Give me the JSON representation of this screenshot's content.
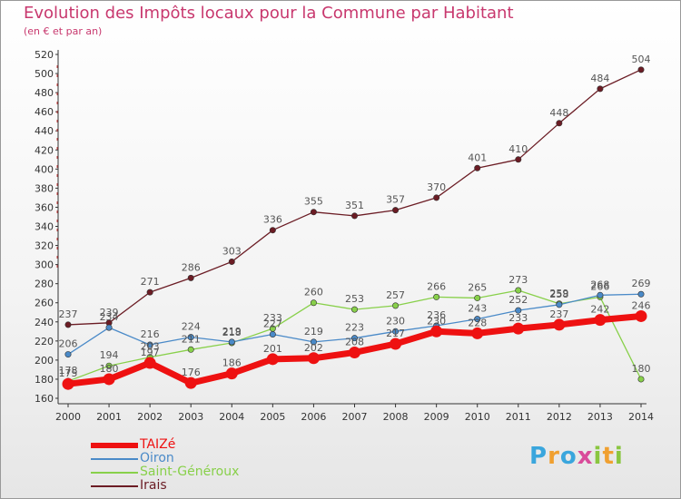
{
  "title": "Evolution des Impôts locaux pour la Commune par Habitant",
  "subtitle": "(en € et par an)",
  "logo": {
    "text": "Proxiti",
    "colors": [
      "#3aa6dd",
      "#f0a030",
      "#3aa6dd",
      "#d94b9a",
      "#8ac640",
      "#f0a030",
      "#8ac640"
    ]
  },
  "chart_data": {
    "type": "line",
    "title": "Evolution des Impôts locaux pour la Commune par Habitant",
    "ylabel": "(en € et par an)",
    "xlabel": "",
    "ylim": [
      160,
      520
    ],
    "y_ticks": [
      160,
      180,
      200,
      220,
      240,
      260,
      280,
      300,
      320,
      340,
      360,
      380,
      400,
      420,
      440,
      460,
      480,
      500,
      520
    ],
    "categories": [
      "2000",
      "2001",
      "2002",
      "2003",
      "2004",
      "2005",
      "2006",
      "2007",
      "2008",
      "2009",
      "2010",
      "2011",
      "2012",
      "2013",
      "2014"
    ],
    "grid": false,
    "legend_position": "bottom-left",
    "series": [
      {
        "name": "TAIZé",
        "color": "#ee1111",
        "values": [
          175,
          180,
          197,
          176,
          186,
          201,
          202,
          208,
          217,
          230,
          228,
          233,
          237,
          242,
          246
        ]
      },
      {
        "name": "Oiron",
        "color": "#4a8ac8",
        "values": [
          206,
          234,
          216,
          224,
          219,
          227,
          219,
          223,
          230,
          236,
          243,
          252,
          258,
          268,
          269
        ]
      },
      {
        "name": "Saint-Généroux",
        "color": "#88d04a",
        "values": [
          178,
          194,
          203,
          211,
          218,
          233,
          260,
          253,
          257,
          266,
          265,
          273,
          259,
          266,
          180
        ]
      },
      {
        "name": "Irais",
        "color": "#6b1c24",
        "values": [
          237,
          239,
          271,
          286,
          303,
          336,
          355,
          351,
          357,
          370,
          401,
          410,
          448,
          484,
          504
        ]
      }
    ]
  }
}
